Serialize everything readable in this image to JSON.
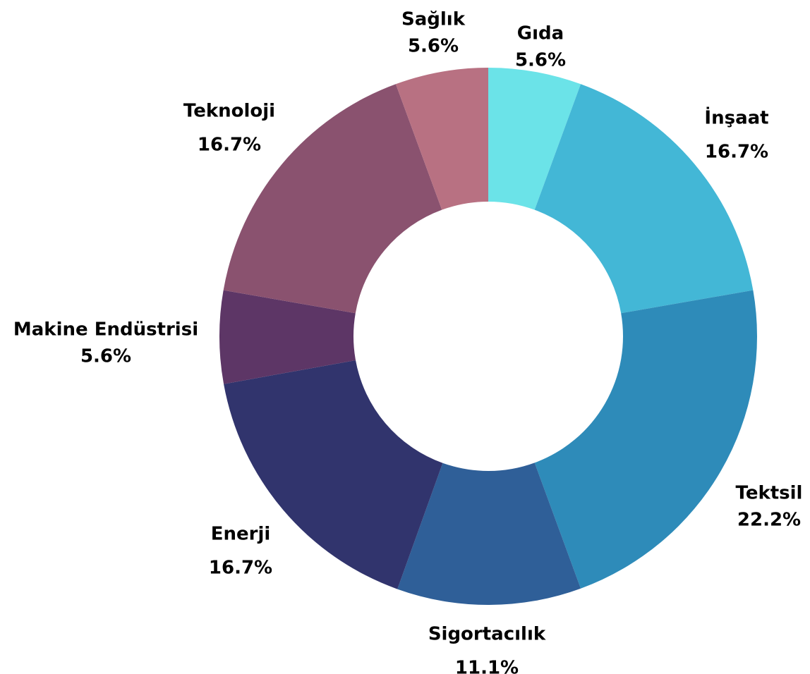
{
  "chart_data": {
    "type": "pie",
    "variant": "donut",
    "start_at": "12 o'clock",
    "direction": "clockwise",
    "legend": "none",
    "slices": [
      {
        "label": "Gıda",
        "value": 5.6,
        "value_label": "5.6%",
        "color": "#6be3e8"
      },
      {
        "label": "İnşaat",
        "value": 16.7,
        "value_label": "16.7%",
        "color": "#43b7d6"
      },
      {
        "label": "Tektsil",
        "value": 22.2,
        "value_label": "22.2%",
        "color": "#2e8bb9"
      },
      {
        "label": "Sigortacılık",
        "value": 11.1,
        "value_label": "11.1%",
        "color": "#2f5f98"
      },
      {
        "label": "Enerji",
        "value": 16.7,
        "value_label": "16.7%",
        "color": "#31346d"
      },
      {
        "label": "Makine Endüstrisi",
        "value": 5.6,
        "value_label": "5.6%",
        "color": "#5d3666"
      },
      {
        "label": "Teknoloji",
        "value": 16.7,
        "value_label": "16.7%",
        "color": "#8a526f"
      },
      {
        "label": "Sağlık",
        "value": 5.6,
        "value_label": "5.6%",
        "color": "#b87182"
      }
    ]
  }
}
